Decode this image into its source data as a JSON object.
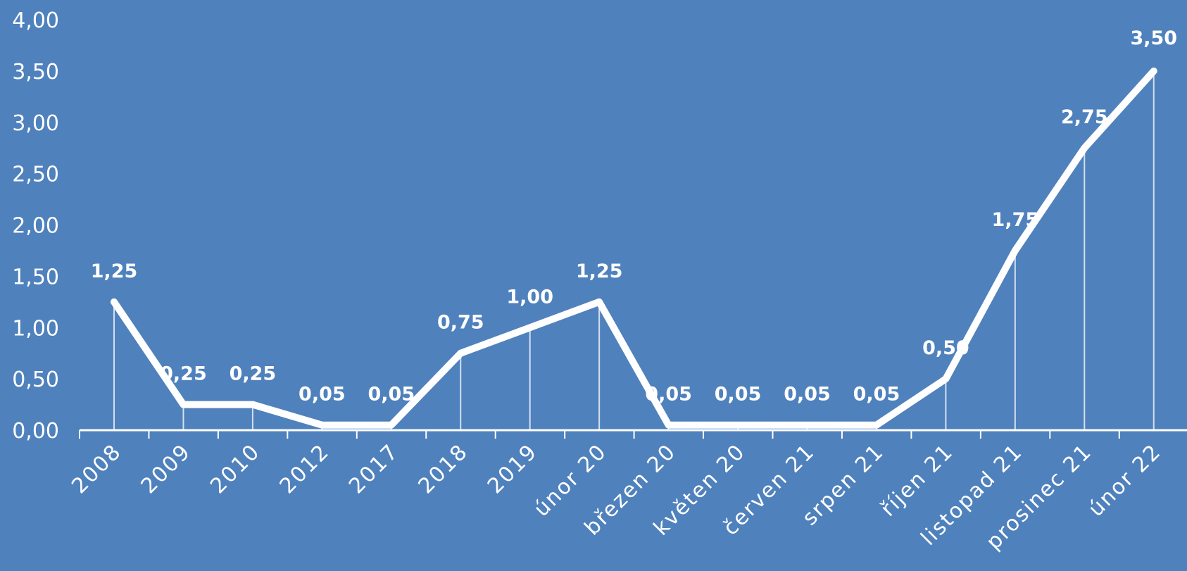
{
  "chart_data": {
    "type": "line",
    "categories": [
      "2008",
      "2009",
      "2010",
      "2012",
      "2017",
      "2018",
      "2019",
      "únor 20",
      "březen 20",
      "květen 20",
      "červen 21",
      "srpen 21",
      "říjen 21",
      "listopad 21",
      "prosinec 21",
      "únor 22"
    ],
    "values": [
      1.25,
      0.25,
      0.25,
      0.05,
      0.05,
      0.75,
      1.0,
      1.25,
      0.05,
      0.05,
      0.05,
      0.05,
      0.5,
      1.75,
      2.75,
      3.5
    ],
    "data_labels": [
      "1,25",
      "0,25",
      "0,25",
      "0,05",
      "0,05",
      "0,75",
      "1,00",
      "1,25",
      "0,05",
      "0,05",
      "0,05",
      "0,05",
      "0,50",
      "1,75",
      "2,75",
      "3,50"
    ],
    "y_tick_labels": [
      "0,00",
      "0,50",
      "1,00",
      "1,50",
      "2,00",
      "2,50",
      "3,00",
      "3,50",
      "4,00"
    ],
    "y_ticks": [
      0,
      0.5,
      1,
      1.5,
      2,
      2.5,
      3,
      3.5,
      4
    ],
    "ylim": [
      0,
      4
    ],
    "grid": false,
    "drop_lines": true,
    "title": "",
    "xlabel": "",
    "ylabel": "",
    "colors": {
      "background": "#4f81bd",
      "line": "#ffffff",
      "axis": "#ffffff",
      "text": "#ffffff"
    }
  }
}
